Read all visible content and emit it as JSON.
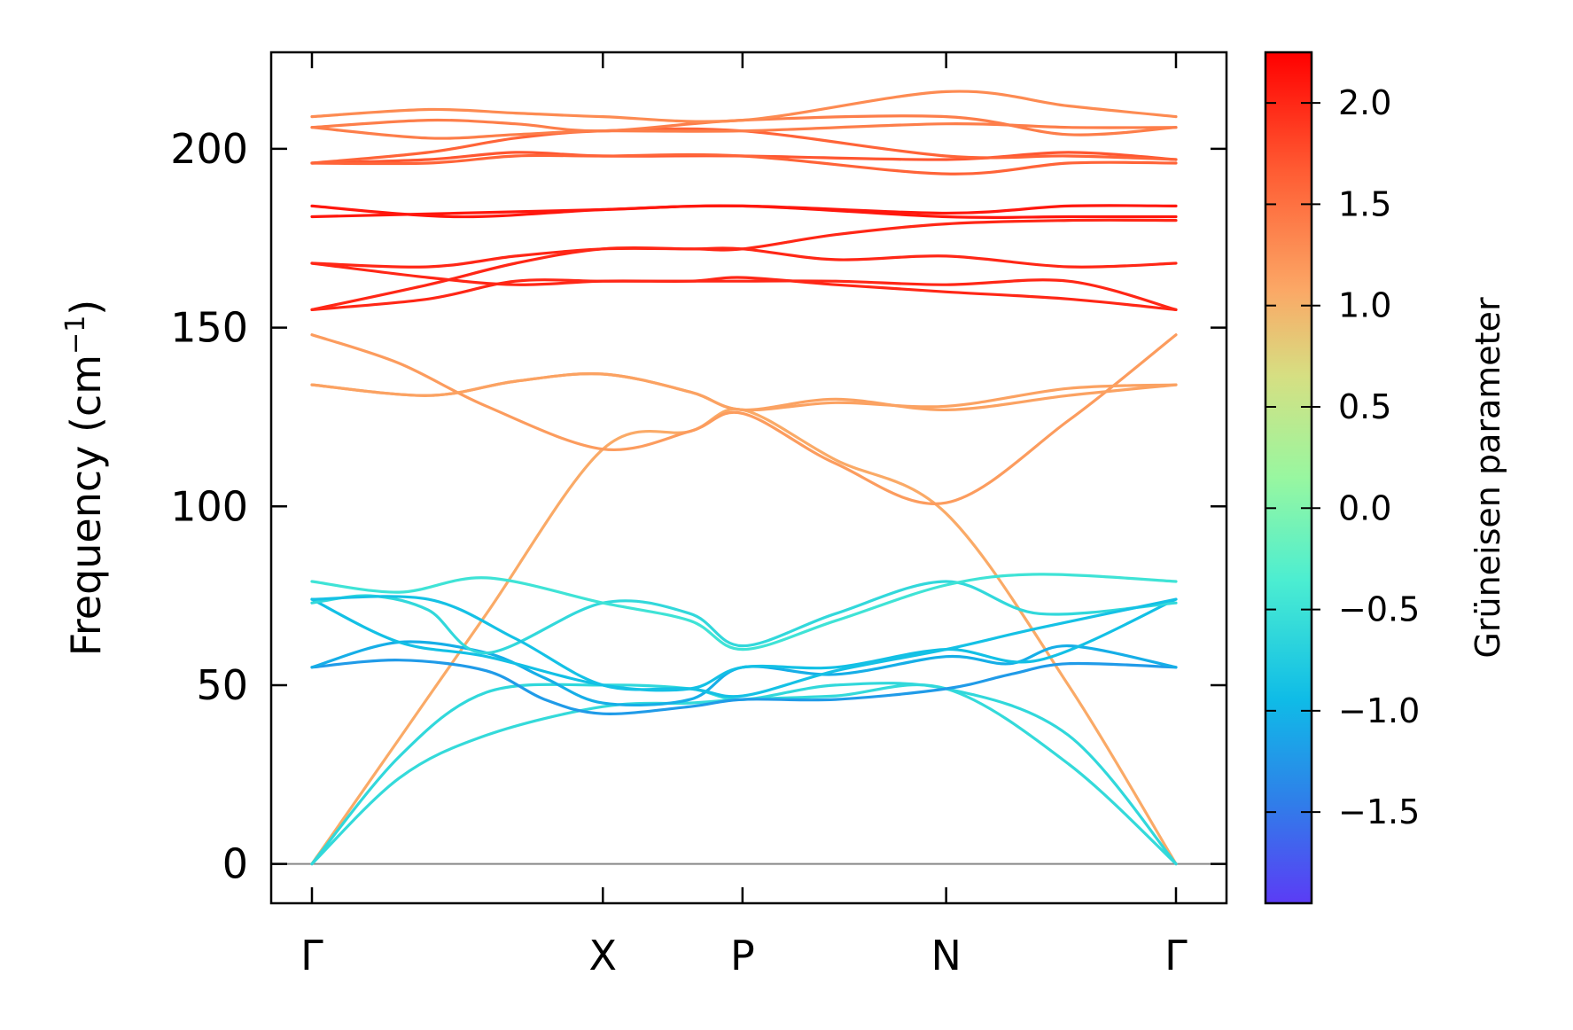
{
  "chart_data": {
    "type": "line",
    "title": "",
    "xlabel": "",
    "ylabel": "Frequency (cm",
    "ylabel_sup": "−1",
    "ylabel_end": ")",
    "ylim": [
      -11,
      227
    ],
    "yticks": [
      0,
      50,
      100,
      150,
      200
    ],
    "ytick_labels": [
      "0",
      "50",
      "100",
      "150",
      "200"
    ],
    "path": [
      {
        "label": "Γ",
        "x": 0.0
      },
      {
        "label": "X",
        "x": 1.0
      },
      {
        "label": "P",
        "x": 1.48
      },
      {
        "label": "N",
        "x": 2.18
      },
      {
        "label": "Γ",
        "x": 2.97
      }
    ],
    "grid": false,
    "zero_line": 0,
    "colorbar": {
      "label": "Grüneisen parameter",
      "range": [
        -1.95,
        2.25
      ],
      "colormap": "rainbow",
      "ticks": [
        2.0,
        1.5,
        1.0,
        0.5,
        0.0,
        -0.5,
        -1.0,
        -1.5
      ],
      "tick_labels": [
        "2.0",
        "1.5",
        "1.0",
        "0.5",
        "0.0",
        "−0.5",
        "−1.0",
        "−1.5"
      ]
    },
    "series": [
      {
        "x": [
          0,
          0.3,
          0.6,
          1.0,
          1.3,
          1.48,
          1.8,
          2.18,
          2.6,
          2.97
        ],
        "y": [
          0,
          35,
          70,
          116,
          121,
          127,
          113,
          98,
          50,
          0
        ],
        "g": [
          1.1,
          1.1,
          1.1,
          1.1,
          1.0,
          0.9,
          1.0,
          1.1,
          1.1,
          1.1
        ]
      },
      {
        "x": [
          0,
          0.3,
          0.6,
          1.0,
          1.3,
          1.48,
          1.8,
          2.18,
          2.6,
          2.97
        ],
        "y": [
          148,
          140,
          128,
          116,
          121,
          126,
          112,
          101,
          124,
          148
        ],
        "g": [
          1.4,
          1.4,
          1.2,
          1.1,
          1.0,
          0.9,
          1.0,
          1.1,
          1.2,
          1.4
        ]
      },
      {
        "x": [
          0,
          0.4,
          0.7,
          1.0,
          1.3,
          1.48,
          1.8,
          2.18,
          2.6,
          2.97
        ],
        "y": [
          134,
          131,
          135,
          137,
          132,
          127,
          129,
          128,
          133,
          134
        ],
        "g": [
          1.3,
          1.2,
          1.0,
          0.9,
          0.9,
          1.0,
          1.1,
          1.2,
          1.3,
          1.3
        ]
      },
      {
        "x": [
          0,
          0.4,
          0.7,
          1.0,
          1.3,
          1.48,
          1.8,
          2.18,
          2.6,
          2.97
        ],
        "y": [
          134,
          131,
          135,
          137,
          132,
          127,
          130,
          127,
          131,
          134
        ],
        "g": [
          1.3,
          1.2,
          1.0,
          0.9,
          0.9,
          1.0,
          1.1,
          1.2,
          1.3,
          1.3
        ]
      },
      {
        "x": [
          0,
          0.3,
          0.6,
          1.0,
          1.3,
          1.48,
          1.8,
          2.18,
          2.6,
          2.97
        ],
        "y": [
          0,
          24,
          36,
          44,
          45,
          46,
          47,
          49,
          28,
          0
        ],
        "g": [
          -0.3,
          -0.4,
          -0.5,
          -0.6,
          -0.8,
          -0.8,
          -0.9,
          -0.8,
          -0.5,
          -0.3
        ]
      },
      {
        "x": [
          0,
          0.3,
          0.6,
          1.0,
          1.3,
          1.48,
          1.8,
          2.18,
          2.6,
          2.97
        ],
        "y": [
          0,
          30,
          48,
          50,
          49,
          46,
          50,
          49,
          36,
          0
        ],
        "g": [
          -0.3,
          -0.4,
          -0.5,
          -0.8,
          -0.9,
          -0.9,
          -0.8,
          -0.7,
          -0.5,
          -0.3
        ]
      },
      {
        "x": [
          0,
          0.3,
          0.6,
          0.8,
          1.0,
          1.3,
          1.48,
          1.8,
          2.18,
          2.4,
          2.6,
          2.97
        ],
        "y": [
          55,
          57,
          54,
          46,
          42,
          44,
          46,
          46,
          49,
          53,
          56,
          55
        ],
        "g": [
          -1.6,
          -1.3,
          -1.3,
          -1.2,
          -1.3,
          -1.2,
          -1.1,
          -1.0,
          -1.0,
          -0.9,
          -1.1,
          -1.6
        ]
      },
      {
        "x": [
          0,
          0.3,
          0.6,
          0.8,
          1.0,
          1.3,
          1.48,
          1.8,
          2.18,
          2.4,
          2.6,
          2.97
        ],
        "y": [
          55,
          62,
          59,
          52,
          45,
          46,
          55,
          53,
          58,
          56,
          61,
          55
        ],
        "g": [
          -1.5,
          -1.2,
          -1.1,
          -1.0,
          -1.0,
          -1.0,
          -0.7,
          -0.8,
          -0.8,
          -1.0,
          -1.1,
          -1.5
        ]
      },
      {
        "x": [
          0,
          0.3,
          0.6,
          1.0,
          1.3,
          1.48,
          1.8,
          2.18,
          2.5,
          2.97
        ],
        "y": [
          74,
          62,
          58,
          50,
          49,
          55,
          55,
          60,
          57,
          74
        ],
        "g": [
          -0.8,
          -1.0,
          -1.0,
          -1.1,
          -1.1,
          -0.7,
          -0.8,
          -0.9,
          -0.8,
          -0.8
        ]
      },
      {
        "x": [
          0,
          0.2,
          0.4,
          0.6,
          1.0,
          1.3,
          1.48,
          1.8,
          2.18,
          2.5,
          2.97
        ],
        "y": [
          73,
          75,
          71,
          59,
          73,
          70,
          61,
          70,
          79,
          70,
          73
        ],
        "g": [
          -0.7,
          -0.7,
          -0.6,
          -0.6,
          -0.5,
          -0.5,
          -0.5,
          -0.6,
          -0.6,
          -0.7,
          -0.7
        ]
      },
      {
        "x": [
          0,
          0.3,
          0.6,
          1.0,
          1.3,
          1.48,
          1.8,
          2.18,
          2.5,
          2.97
        ],
        "y": [
          79,
          76,
          80,
          73,
          68,
          60,
          68,
          78,
          81,
          79
        ],
        "g": [
          -0.5,
          -0.5,
          -0.4,
          -0.5,
          -0.5,
          -0.6,
          -0.5,
          -0.4,
          -0.4,
          -0.5
        ]
      },
      {
        "x": [
          0,
          0.4,
          0.7,
          1.0,
          1.3,
          1.48,
          1.8,
          2.18,
          2.5,
          2.97
        ],
        "y": [
          74,
          74,
          63,
          50,
          49,
          47,
          54,
          60,
          66,
          74
        ],
        "g": [
          -0.8,
          -0.8,
          -0.9,
          -1.0,
          -1.0,
          -1.0,
          -0.9,
          -0.8,
          -0.8,
          -0.8
        ]
      },
      {
        "x": [
          0,
          0.4,
          0.7,
          1.0,
          1.3,
          1.48,
          1.8,
          2.18,
          2.6,
          2.97
        ],
        "y": [
          155,
          162,
          168,
          172,
          172,
          172,
          176,
          179,
          180,
          180
        ],
        "g": [
          2.0,
          2.0,
          2.0,
          2.0,
          2.0,
          2.0,
          2.0,
          2.0,
          2.0,
          2.0
        ]
      },
      {
        "x": [
          0,
          0.4,
          0.7,
          1.0,
          1.3,
          1.48,
          1.8,
          2.18,
          2.6,
          2.97
        ],
        "y": [
          155,
          158,
          163,
          163,
          163,
          163,
          163,
          162,
          163,
          155
        ],
        "g": [
          2.0,
          2.0,
          2.0,
          2.0,
          2.0,
          2.0,
          2.0,
          2.0,
          2.0,
          2.0
        ]
      },
      {
        "x": [
          0,
          0.4,
          0.7,
          1.0,
          1.3,
          1.48,
          1.8,
          2.18,
          2.6,
          2.97
        ],
        "y": [
          168,
          164,
          162,
          163,
          163,
          164,
          162,
          160,
          158,
          155
        ],
        "g": [
          2.0,
          2.0,
          2.0,
          2.0,
          2.0,
          2.0,
          2.0,
          2.0,
          2.0,
          2.0
        ]
      },
      {
        "x": [
          0,
          0.4,
          0.7,
          1.0,
          1.3,
          1.48,
          1.8,
          2.18,
          2.6,
          2.97
        ],
        "y": [
          168,
          167,
          170,
          172,
          172,
          172,
          169,
          170,
          167,
          168
        ],
        "g": [
          2.0,
          2.0,
          2.0,
          2.0,
          2.0,
          2.0,
          2.0,
          2.0,
          2.0,
          2.0
        ]
      },
      {
        "x": [
          0,
          0.5,
          1.0,
          1.48,
          2.18,
          2.6,
          2.97
        ],
        "y": [
          184,
          181,
          183,
          184,
          182,
          184,
          184
        ],
        "g": [
          2.1,
          2.1,
          2.1,
          2.1,
          2.1,
          2.1,
          2.1
        ]
      },
      {
        "x": [
          0,
          0.5,
          1.0,
          1.48,
          2.18,
          2.6,
          2.97
        ],
        "y": [
          181,
          182,
          183,
          184,
          181,
          181,
          181
        ],
        "g": [
          2.1,
          2.1,
          2.1,
          2.1,
          2.1,
          2.1,
          2.1
        ]
      },
      {
        "x": [
          0,
          0.4,
          0.7,
          1.0,
          1.48,
          2.18,
          2.6,
          2.97
        ],
        "y": [
          196,
          197,
          199,
          198,
          198,
          197,
          199,
          197
        ],
        "g": [
          1.7,
          1.7,
          1.7,
          1.7,
          1.7,
          1.7,
          1.7,
          1.7
        ]
      },
      {
        "x": [
          0,
          0.4,
          0.7,
          1.0,
          1.48,
          2.18,
          2.6,
          2.97
        ],
        "y": [
          196,
          196,
          198,
          198,
          198,
          193,
          196,
          196
        ],
        "g": [
          1.6,
          1.6,
          1.6,
          1.6,
          1.6,
          1.6,
          1.6,
          1.6
        ]
      },
      {
        "x": [
          0,
          0.4,
          0.7,
          1.0,
          1.48,
          2.18,
          2.6,
          2.97
        ],
        "y": [
          196,
          199,
          203,
          205,
          205,
          198,
          198,
          197
        ],
        "g": [
          1.6,
          1.6,
          1.6,
          1.6,
          1.6,
          1.6,
          1.6,
          1.6
        ]
      },
      {
        "x": [
          0,
          0.4,
          0.7,
          1.0,
          1.48,
          2.18,
          2.6,
          2.97
        ],
        "y": [
          206,
          203,
          204,
          205,
          205,
          207,
          206,
          206
        ],
        "g": [
          1.4,
          1.4,
          1.4,
          1.4,
          1.4,
          1.4,
          1.4,
          1.4
        ]
      },
      {
        "x": [
          0,
          0.4,
          0.7,
          1.0,
          1.48,
          2.18,
          2.6,
          2.97
        ],
        "y": [
          206,
          208,
          207,
          205,
          208,
          209,
          204,
          206
        ],
        "g": [
          1.4,
          1.4,
          1.4,
          1.4,
          1.4,
          1.4,
          1.4,
          1.4
        ]
      },
      {
        "x": [
          0,
          0.4,
          0.7,
          1.0,
          1.48,
          2.18,
          2.6,
          2.97
        ],
        "y": [
          209,
          211,
          210,
          209,
          208,
          216,
          212,
          209
        ],
        "g": [
          1.3,
          1.3,
          1.3,
          1.3,
          1.3,
          1.3,
          1.3,
          1.3
        ]
      }
    ]
  }
}
